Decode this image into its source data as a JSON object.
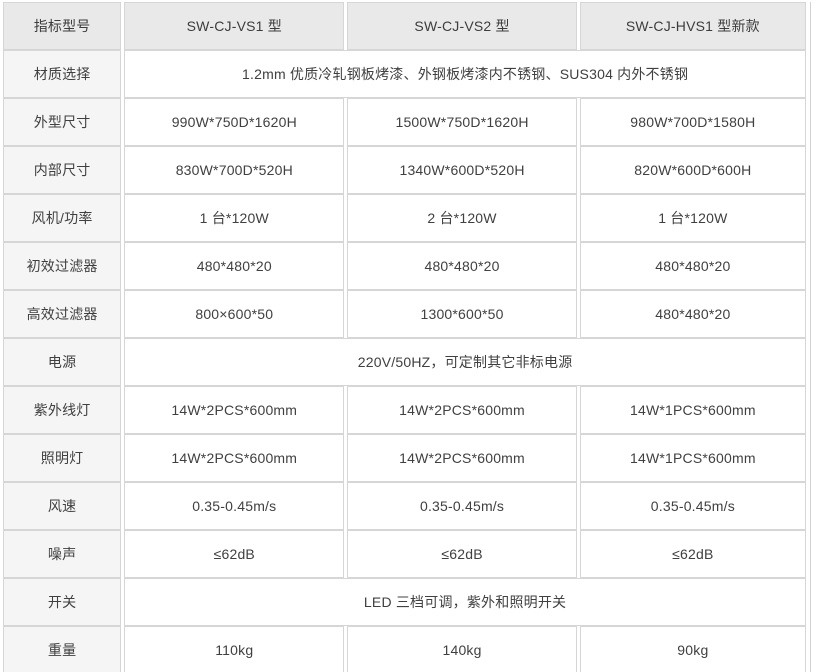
{
  "colors": {
    "header_bg": "#e9e9e9",
    "label_col_bg": "#f5f5f5",
    "cell_bg": "#ffffff",
    "border": "#d6d6d6",
    "text": "#404040"
  },
  "table": {
    "columns": [
      "指标型号",
      "SW-CJ-VS1 型",
      "SW-CJ-VS2 型",
      "SW-CJ-HVS1 型新款"
    ],
    "rows": [
      {
        "label": "材质选择",
        "span": "1.2mm 优质冷轧钢板烤漆、外钢板烤漆内不锈钢、SUS304 内外不锈钢"
      },
      {
        "label": "外型尺寸",
        "values": [
          "990W*750D*1620H",
          "1500W*750D*1620H",
          "980W*700D*1580H"
        ]
      },
      {
        "label": "内部尺寸",
        "values": [
          "830W*700D*520H",
          "1340W*600D*520H",
          "820W*600D*600H"
        ]
      },
      {
        "label": "风机/功率",
        "values": [
          "1 台*120W",
          "2 台*120W",
          "1 台*120W"
        ]
      },
      {
        "label": "初效过滤器",
        "values": [
          "480*480*20",
          "480*480*20",
          "480*480*20"
        ]
      },
      {
        "label": "高效过滤器",
        "values": [
          "800×600*50",
          "1300*600*50",
          "480*480*20"
        ]
      },
      {
        "label": "电源",
        "span": "220V/50HZ，可定制其它非标电源"
      },
      {
        "label": "紫外线灯",
        "values": [
          "14W*2PCS*600mm",
          "14W*2PCS*600mm",
          "14W*1PCS*600mm"
        ]
      },
      {
        "label": "照明灯",
        "values": [
          "14W*2PCS*600mm",
          "14W*2PCS*600mm",
          "14W*1PCS*600mm"
        ]
      },
      {
        "label": "风速",
        "values": [
          "0.35-0.45m/s",
          "0.35-0.45m/s",
          "0.35-0.45m/s"
        ]
      },
      {
        "label": "噪声",
        "values": [
          "≤62dB",
          "≤62dB",
          "≤62dB"
        ]
      },
      {
        "label": "开关",
        "span": "LED 三档可调，紫外和照明开关"
      },
      {
        "label": "重量",
        "values": [
          "110kg",
          "140kg",
          "90kg"
        ]
      }
    ]
  }
}
